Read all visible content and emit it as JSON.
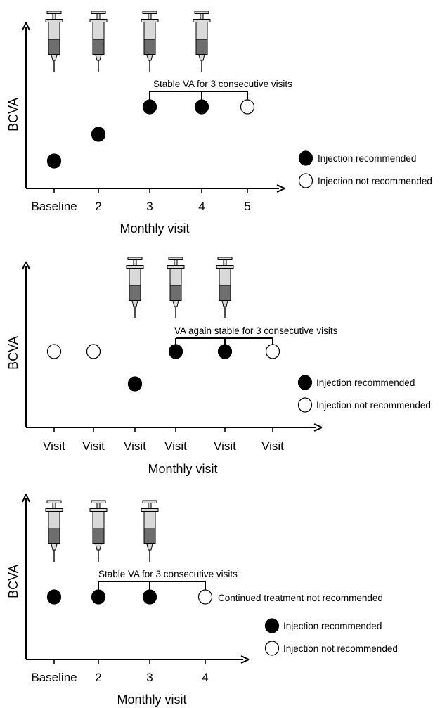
{
  "colors": {
    "injection_recommended": "#000000",
    "injection_not_recommended": "#ffffff",
    "syringe_body": "#d9d9d9",
    "syringe_fluid": "#6e6e6e",
    "outline": "#000000"
  },
  "icons": [
    "syringe-icon",
    "filled-circle-icon",
    "open-circle-icon",
    "arrow-head-icon"
  ],
  "panels": [
    {
      "y_label": "BCVA",
      "x_title": "Monthly visit",
      "x_ticks": [
        "Baseline",
        "2",
        "3",
        "4",
        "5"
      ],
      "visits": [
        {
          "bcva_level": "low",
          "injection": true
        },
        {
          "bcva_level": "mid",
          "injection": true
        },
        {
          "bcva_level": "high",
          "injection": true
        },
        {
          "bcva_level": "high",
          "injection": true
        },
        {
          "bcva_level": "high",
          "injection": false
        }
      ],
      "syringes_at_visits": [
        1,
        2,
        3,
        4
      ],
      "bracket": {
        "label": "Stable VA for 3 consecutive visits",
        "visits": [
          3,
          4,
          5
        ]
      },
      "note": "",
      "legend": {
        "recommended": "Injection recommended",
        "not_recommended": "Injection not recommended"
      }
    },
    {
      "y_label": "BCVA",
      "x_title": "Monthly visit",
      "x_ticks": [
        "Visit",
        "Visit",
        "Visit",
        "Visit",
        "Visit",
        "Visit"
      ],
      "visits": [
        {
          "bcva_level": "high",
          "injection": false
        },
        {
          "bcva_level": "high",
          "injection": false
        },
        {
          "bcva_level": "low",
          "injection": true
        },
        {
          "bcva_level": "high",
          "injection": true
        },
        {
          "bcva_level": "high",
          "injection": true
        },
        {
          "bcva_level": "high",
          "injection": false
        }
      ],
      "syringes_at_visits": [
        3,
        4,
        5
      ],
      "bracket": {
        "label": "VA again stable for 3 consecutive visits",
        "visits": [
          4,
          5,
          6
        ]
      },
      "note": "",
      "legend": {
        "recommended": "Injection recommended",
        "not_recommended": "Injection not recommended"
      }
    },
    {
      "y_label": "BCVA",
      "x_title": "Monthly visit",
      "x_ticks": [
        "Baseline",
        "2",
        "3",
        "4"
      ],
      "visits": [
        {
          "bcva_level": "high",
          "injection": true
        },
        {
          "bcva_level": "high",
          "injection": true
        },
        {
          "bcva_level": "high",
          "injection": true
        },
        {
          "bcva_level": "high",
          "injection": false
        }
      ],
      "syringes_at_visits": [
        1,
        2,
        3
      ],
      "bracket": {
        "label": "Stable VA for 3 consecutive visits",
        "visits": [
          2,
          3,
          4
        ]
      },
      "note": "Continued treatment not recommended",
      "legend": {
        "recommended": "Injection recommended",
        "not_recommended": "Injection not recommended"
      }
    }
  ]
}
